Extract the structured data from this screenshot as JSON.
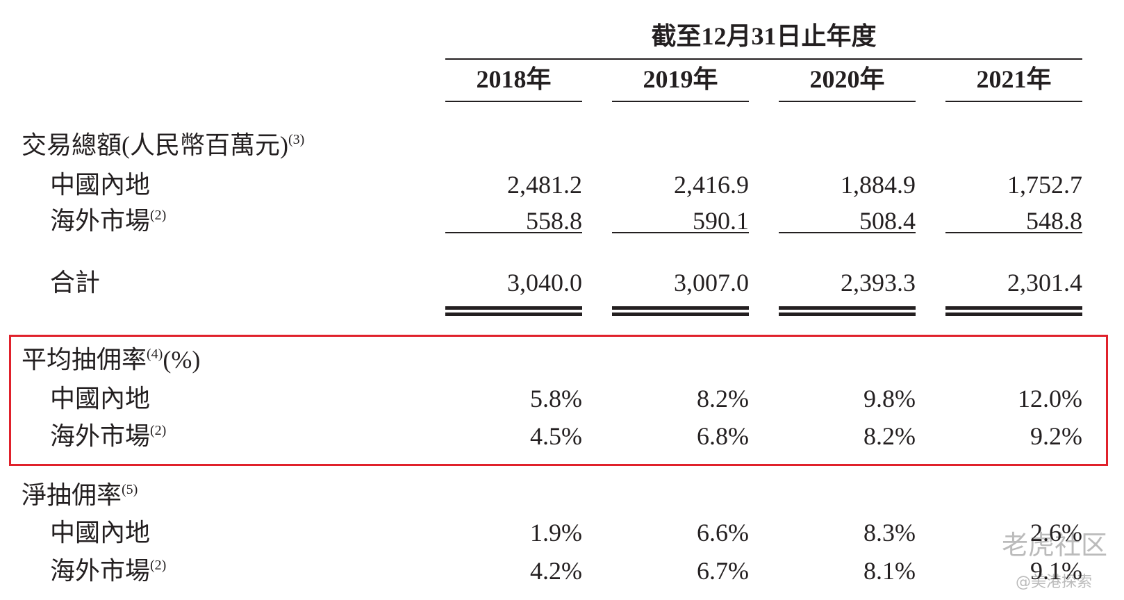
{
  "header": {
    "period": "截至12月31日止年度",
    "years": [
      "2018年",
      "2019年",
      "2020年",
      "2021年"
    ]
  },
  "sections": [
    {
      "title": "交易總額(人民幣百萬元)",
      "note": "(3)",
      "rows": [
        {
          "label": "中國內地",
          "values": [
            "2,481.2",
            "2,416.9",
            "1,884.9",
            "1,752.7"
          ]
        },
        {
          "label": "海外市場",
          "note": "(2)",
          "values": [
            "558.8",
            "590.1",
            "508.4",
            "548.8"
          ]
        }
      ],
      "total": {
        "label": "合計",
        "values": [
          "3,040.0",
          "3,007.0",
          "2,393.3",
          "2,301.4"
        ]
      }
    },
    {
      "title": "平均抽佣率",
      "note": "(4)",
      "suffix": "(%)",
      "rows": [
        {
          "label": "中國內地",
          "values": [
            "5.8%",
            "8.2%",
            "9.8%",
            "12.0%"
          ]
        },
        {
          "label": "海外市場",
          "note": "(2)",
          "values": [
            "4.5%",
            "6.8%",
            "8.2%",
            "9.2%"
          ]
        }
      ]
    },
    {
      "title": "淨抽佣率",
      "note": "(5)",
      "rows": [
        {
          "label": "中國內地",
          "values": [
            "1.9%",
            "6.6%",
            "8.3%",
            "2.6%"
          ]
        },
        {
          "label": "海外市場",
          "note": "(2)",
          "values": [
            "4.2%",
            "6.7%",
            "8.1%",
            "9.1%"
          ]
        }
      ]
    }
  ],
  "watermark": {
    "brand": "老虎社区",
    "handle": "@美港探索"
  }
}
